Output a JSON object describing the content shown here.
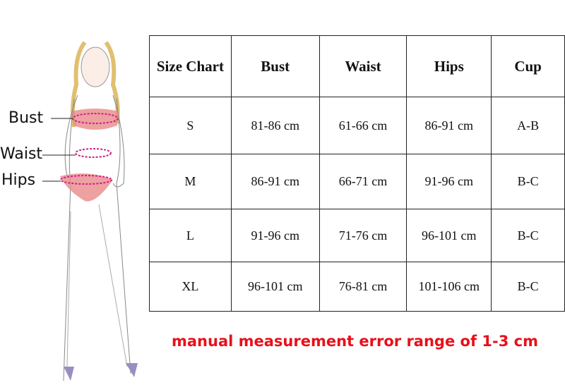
{
  "labels": {
    "bust": "Bust",
    "waist": "Waist",
    "hips": "Hips"
  },
  "table": {
    "headers": [
      "Size Chart",
      "Bust",
      "Waist",
      "Hips",
      "Cup"
    ],
    "rows": [
      [
        "S",
        "81-86 cm",
        "61-66 cm",
        "86-91 cm",
        "A-B"
      ],
      [
        "M",
        "86-91 cm",
        "66-71 cm",
        "91-96 cm",
        "B-C"
      ],
      [
        "L",
        "91-96 cm",
        "71-76 cm",
        "96-101 cm",
        "B-C"
      ],
      [
        "XL",
        "96-101 cm",
        "76-81 cm",
        "101-106 cm",
        "B-C"
      ]
    ]
  },
  "note": "manual measurement error range of 1-3 cm",
  "colors": {
    "note": "#e8101a",
    "lingerie": "#e88a8a",
    "measure_lines": "#d0208a"
  }
}
